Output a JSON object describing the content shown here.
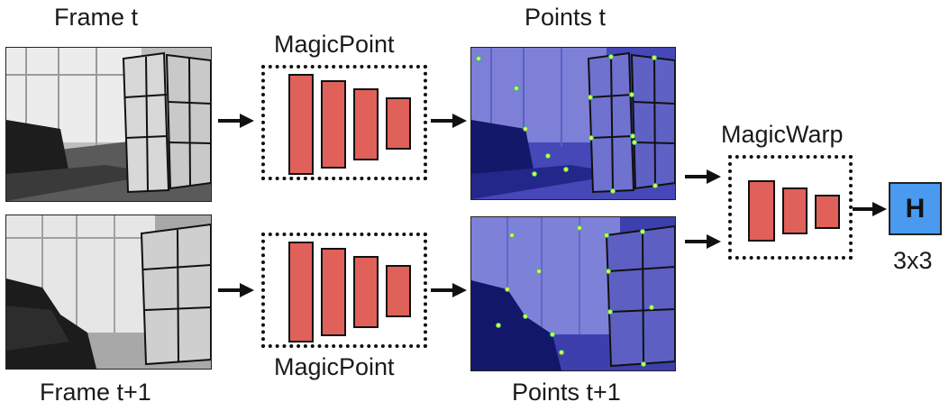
{
  "labels": {
    "frame_t": "Frame t",
    "frame_t1": "Frame t+1",
    "points_t": "Points t",
    "points_t1": "Points t+1",
    "magicpoint_top": "MagicPoint",
    "magicpoint_bottom": "MagicPoint",
    "magicwarp": "MagicWarp",
    "h_box": "H",
    "h_size": "3x3"
  },
  "colors": {
    "bar_fill": "#e0605a",
    "h_fill": "#4a9af0",
    "points_overlay": "#3a3ec0",
    "keypoint": "#e4f24a"
  }
}
